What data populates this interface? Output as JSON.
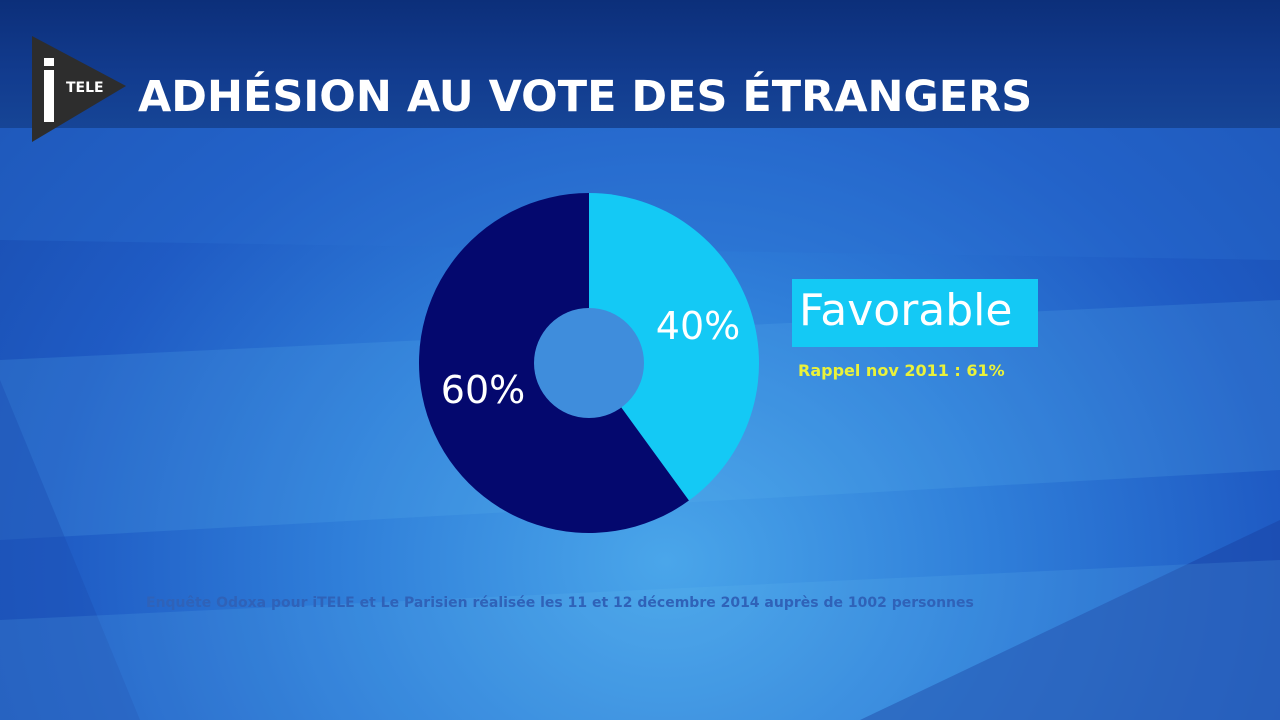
{
  "header": {
    "title": "ADHÉSION AU VOTE DES ÉTRANGERS",
    "logo_text": "TELE"
  },
  "chart_data": {
    "type": "pie",
    "donut": true,
    "start_angle_deg": 0,
    "slices": [
      {
        "value": 40,
        "label": "40%",
        "color": "#14c9f5"
      },
      {
        "value": 60,
        "label": "60%",
        "color": "#04086e"
      }
    ],
    "legend": {
      "label": "Favorable",
      "note": "Rappel nov 2011 : 61%"
    }
  },
  "footer": {
    "source": "Enquête Odoxa pour iTELE et Le Parisien réalisée les 11 et 12 décembre 2014 auprès de 1002 personnes"
  },
  "colors": {
    "accent": "#14c9f5",
    "dark_slice": "#04086e",
    "note": "#eaf23a",
    "background": "#2f7ed9"
  }
}
